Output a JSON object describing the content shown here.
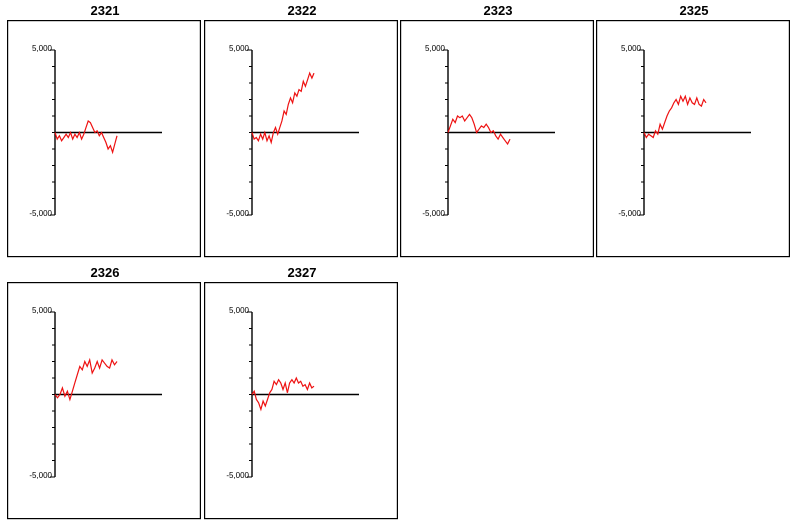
{
  "chart_data": [
    {
      "type": "line",
      "title": "2321",
      "ylim": [
        -5000,
        5000
      ],
      "yticks": [
        -5000,
        5000
      ],
      "ytick_labels": [
        "-5,000",
        "5,000"
      ],
      "zero_line": true,
      "grid": false,
      "series": [
        {
          "color": "#ee1111",
          "y": [
            0,
            -400,
            -200,
            -500,
            -300,
            -100,
            -300,
            0,
            -400,
            -100,
            -300,
            0,
            -400,
            -100,
            300,
            700,
            600,
            300,
            0,
            100,
            -200,
            0,
            -300,
            -600,
            -1000,
            -800,
            -1200,
            -700,
            -200
          ]
        }
      ]
    },
    {
      "type": "line",
      "title": "2322",
      "ylim": [
        -5000,
        5000
      ],
      "yticks": [
        -5000,
        5000
      ],
      "ytick_labels": [
        "-5,000",
        "5,000"
      ],
      "zero_line": true,
      "grid": false,
      "series": [
        {
          "color": "#ee1111",
          "y": [
            0,
            -400,
            -300,
            -500,
            -100,
            -400,
            0,
            -500,
            -200,
            -600,
            0,
            300,
            -100,
            300,
            700,
            1300,
            1100,
            1700,
            2100,
            1800,
            2400,
            2200,
            2600,
            2500,
            3100,
            2800,
            3200,
            3600,
            3300,
            3600
          ]
        }
      ]
    },
    {
      "type": "line",
      "title": "2323",
      "ylim": [
        -5000,
        5000
      ],
      "yticks": [
        -5000,
        5000
      ],
      "ytick_labels": [
        "-5,000",
        "5,000"
      ],
      "zero_line": true,
      "grid": false,
      "series": [
        {
          "color": "#ee1111",
          "y": [
            0,
            400,
            800,
            600,
            1000,
            900,
            1000,
            700,
            900,
            1100,
            900,
            500,
            0,
            200,
            400,
            300,
            500,
            300,
            0,
            100,
            -200,
            -400,
            -100,
            -300,
            -500,
            -700,
            -400
          ]
        }
      ]
    },
    {
      "type": "line",
      "title": "2325",
      "ylim": [
        -5000,
        5000
      ],
      "yticks": [
        -5000,
        5000
      ],
      "ytick_labels": [
        "-5,000",
        "5,000"
      ],
      "zero_line": true,
      "grid": false,
      "series": [
        {
          "color": "#ee1111",
          "y": [
            0,
            -300,
            -100,
            -200,
            -300,
            100,
            -100,
            500,
            200,
            600,
            1000,
            1300,
            1500,
            1800,
            2000,
            1700,
            2200,
            1900,
            2200,
            1700,
            2100,
            1800,
            1700,
            2100,
            1700,
            1600,
            2000,
            1800
          ]
        }
      ]
    },
    {
      "type": "line",
      "title": "2326",
      "ylim": [
        -5000,
        5000
      ],
      "yticks": [
        -5000,
        5000
      ],
      "ytick_labels": [
        "-5,000",
        "5,000"
      ],
      "zero_line": true,
      "grid": false,
      "series": [
        {
          "color": "#ee1111",
          "y": [
            0,
            -200,
            0,
            400,
            -100,
            200,
            -300,
            200,
            700,
            1200,
            1700,
            1500,
            2000,
            1700,
            2100,
            1300,
            1600,
            2000,
            1600,
            2100,
            1900,
            1700,
            1600,
            2100,
            1800,
            2000
          ]
        }
      ]
    },
    {
      "type": "line",
      "title": "2327",
      "ylim": [
        -5000,
        5000
      ],
      "yticks": [
        -5000,
        5000
      ],
      "ytick_labels": [
        "-5,000",
        "5,000"
      ],
      "zero_line": true,
      "grid": false,
      "series": [
        {
          "color": "#ee1111",
          "y": [
            0,
            200,
            -300,
            -500,
            -900,
            -400,
            -700,
            -300,
            100,
            300,
            800,
            600,
            900,
            700,
            300,
            700,
            100,
            700,
            900,
            700,
            1000,
            700,
            800,
            500,
            600,
            300,
            700,
            400,
            500
          ]
        }
      ]
    }
  ]
}
